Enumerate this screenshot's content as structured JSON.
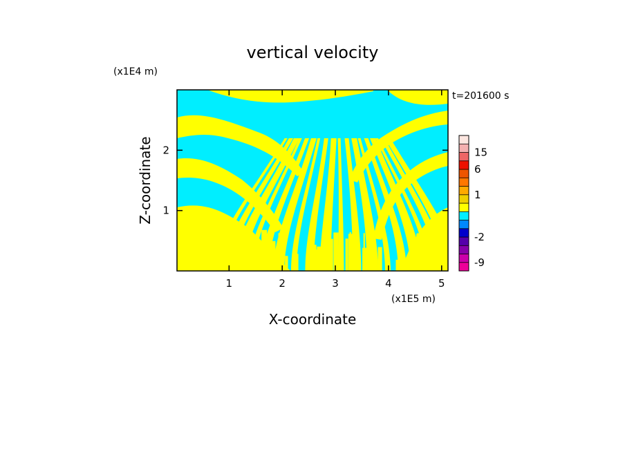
{
  "chart_data": {
    "type": "heatmap",
    "title": "vertical velocity",
    "xlabel": "X-coordinate",
    "ylabel": "Z-coordinate",
    "x_unit": "(x1E5 m)",
    "y_unit": "(x1E4 m)",
    "time_label": "t=201600 s",
    "xlim": [
      0.02,
      5.12
    ],
    "ylim": [
      0,
      3.0
    ],
    "x_ticks": [
      1,
      2,
      3,
      4,
      5
    ],
    "x_tick_labels": [
      "1",
      "2",
      "3",
      "4",
      "5"
    ],
    "y_ticks": [
      1,
      2
    ],
    "y_tick_labels": [
      "1",
      "2"
    ],
    "field_colors": {
      "positive": "#ffff00",
      "negative": "#00eeff"
    },
    "colorbar": {
      "levels": [
        -12,
        -9,
        -6,
        -4,
        -2,
        -1,
        -0.5,
        0,
        0.5,
        1,
        2,
        4,
        6,
        10,
        15,
        20,
        25
      ],
      "colors": [
        "#ee0099",
        "#cc00aa",
        "#8800aa",
        "#5500aa",
        "#0000cc",
        "#0088ff",
        "#00eeff",
        "#ffff00",
        "#f0d000",
        "#ffaa00",
        "#ff7700",
        "#ee5500",
        "#ee1100",
        "#ee6666",
        "#f4b0b0",
        "#fce6e0"
      ],
      "tick_values": [
        -9,
        -2,
        1,
        6,
        15
      ],
      "tick_labels": [
        "-9",
        "-2",
        "1",
        "6",
        "15"
      ]
    }
  }
}
